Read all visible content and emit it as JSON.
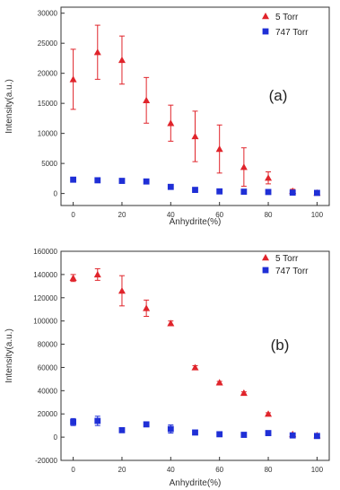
{
  "chart_data": [
    {
      "type": "scatter",
      "panel_label": "(a)",
      "xlabel": "Anhydrite(%)",
      "ylabel": "Intensity(a.u.)",
      "xlim": [
        -5,
        105
      ],
      "ylim": [
        -2000,
        31000
      ],
      "xticks": [
        "0",
        "20",
        "40",
        "60",
        "80",
        "100"
      ],
      "yticks": [
        "0",
        "5000",
        "10000",
        "15000",
        "20000",
        "25000",
        "30000"
      ],
      "x_tick_values": [
        0,
        20,
        40,
        60,
        80,
        100
      ],
      "y_tick_values": [
        0,
        5000,
        10000,
        15000,
        20000,
        25000,
        30000
      ],
      "legend_position": "top-right",
      "series": [
        {
          "name": "5 Torr",
          "marker": "triangle",
          "color": "#e0242b",
          "x": [
            0,
            10,
            20,
            30,
            40,
            50,
            60,
            70,
            80,
            90,
            100
          ],
          "y": [
            19000,
            23500,
            22200,
            15500,
            11700,
            9500,
            7400,
            4400,
            2600,
            400,
            100
          ],
          "err": [
            5000,
            4500,
            4000,
            3800,
            3000,
            4200,
            4000,
            3200,
            1000,
            300,
            200
          ]
        },
        {
          "name": "747 Torr",
          "marker": "square",
          "color": "#1f2fd6",
          "x": [
            0,
            10,
            20,
            30,
            40,
            50,
            60,
            70,
            80,
            90,
            100
          ],
          "y": [
            2300,
            2200,
            2100,
            2000,
            1100,
            600,
            350,
            300,
            250,
            150,
            100
          ],
          "err": [
            400,
            400,
            300,
            300,
            200,
            150,
            100,
            100,
            100,
            80,
            80
          ]
        }
      ]
    },
    {
      "type": "scatter",
      "panel_label": "(b)",
      "xlabel": "Anhydrite(%)",
      "ylabel": "Intensity(a.u.)",
      "xlim": [
        -5,
        105
      ],
      "ylim": [
        -20000,
        160000
      ],
      "xticks": [
        "0",
        "20",
        "40",
        "60",
        "80",
        "100"
      ],
      "yticks": [
        "-20000",
        "0",
        "20000",
        "40000",
        "60000",
        "80000",
        "100000",
        "120000",
        "140000",
        "160000"
      ],
      "x_tick_values": [
        0,
        20,
        40,
        60,
        80,
        100
      ],
      "y_tick_values": [
        -20000,
        0,
        20000,
        40000,
        60000,
        80000,
        100000,
        120000,
        140000,
        160000
      ],
      "legend_position": "top-right",
      "series": [
        {
          "name": "5 Torr",
          "marker": "triangle",
          "color": "#e0242b",
          "x": [
            0,
            10,
            20,
            30,
            40,
            50,
            60,
            70,
            80,
            90,
            100
          ],
          "y": [
            137000,
            140000,
            126000,
            111000,
            98000,
            60000,
            47000,
            38000,
            20000,
            2500,
            1500
          ],
          "err": [
            3000,
            5000,
            13000,
            7000,
            2000,
            1500,
            1000,
            1000,
            1000,
            800,
            800
          ]
        },
        {
          "name": "747 Torr",
          "marker": "square",
          "color": "#1f2fd6",
          "x": [
            0,
            10,
            20,
            30,
            40,
            50,
            60,
            70,
            80,
            90,
            100
          ],
          "y": [
            13000,
            14000,
            6000,
            11000,
            7000,
            4000,
            2500,
            2000,
            3500,
            1500,
            1000
          ],
          "err": [
            3000,
            4000,
            2000,
            2000,
            3500,
            1500,
            1000,
            800,
            1000,
            600,
            600
          ]
        }
      ]
    }
  ]
}
